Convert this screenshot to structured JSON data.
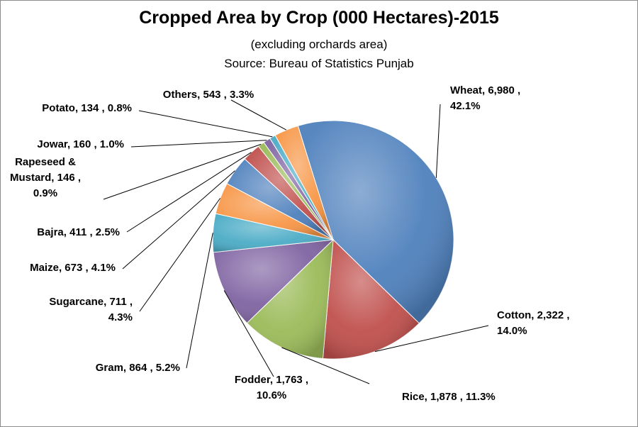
{
  "chart_data": {
    "type": "pie",
    "title": "Cropped Area by Crop (000 Hectares)-2015",
    "subtitle": [
      "(excluding orchards area)",
      "Source: Bureau of Statistics Punjab"
    ],
    "slices": [
      {
        "name": "Wheat",
        "value": 6980,
        "value_text": "6,980",
        "percent": "42.1%",
        "color": "#4f81bd",
        "label": [
          "Wheat,  6,980 ,",
          "42.1%"
        ]
      },
      {
        "name": "Cotton",
        "value": 2322,
        "value_text": "2,322",
        "percent": "14.0%",
        "color": "#c0504d",
        "label": [
          "Cotton,  2,322 ,",
          "14.0%"
        ]
      },
      {
        "name": "Rice",
        "value": 1878,
        "value_text": "1,878",
        "percent": "11.3%",
        "color": "#9bbb59",
        "label": [
          "Rice,  1,878 , 11.3%"
        ]
      },
      {
        "name": "Fodder",
        "value": 1763,
        "value_text": "1,763",
        "percent": "10.6%",
        "color": "#8064a2",
        "label": [
          "Fodder,  1,763 ,",
          "10.6%"
        ]
      },
      {
        "name": "Gram",
        "value": 864,
        "value_text": "864",
        "percent": "5.2%",
        "color": "#4bacc6",
        "label": [
          "Gram,  864 , 5.2%"
        ]
      },
      {
        "name": "Sugarcane",
        "value": 711,
        "value_text": "711",
        "percent": "4.3%",
        "color": "#f79646",
        "label": [
          "Sugarcane,  711 ,",
          "4.3%"
        ]
      },
      {
        "name": "Maize",
        "value": 673,
        "value_text": "673",
        "percent": "4.1%",
        "color": "#4f81bd",
        "label": [
          "Maize,  673 , 4.1%"
        ]
      },
      {
        "name": "Bajra",
        "value": 411,
        "value_text": "411",
        "percent": "2.5%",
        "color": "#c0504d",
        "label": [
          "Bajra,  411 , 2.5%"
        ]
      },
      {
        "name": "Rapeseed & Mustard",
        "value": 146,
        "value_text": "146",
        "percent": "0.9%",
        "color": "#9bbb59",
        "label": [
          "Rapeseed &",
          "Mustard,  146 ,",
          "0.9%"
        ]
      },
      {
        "name": "Jowar",
        "value": 160,
        "value_text": "160",
        "percent": "1.0%",
        "color": "#8064a2",
        "label": [
          "Jowar,  160 , 1.0%"
        ]
      },
      {
        "name": "Potato",
        "value": 134,
        "value_text": "134",
        "percent": "0.8%",
        "color": "#4bacc6",
        "label": [
          "Potato,  134 , 0.8%"
        ]
      },
      {
        "name": "Others",
        "value": 543,
        "value_text": "543",
        "percent": "3.3%",
        "color": "#f79646",
        "label": [
          "Others,  543 , 3.3%"
        ]
      }
    ],
    "start_angle_deg": 343,
    "direction": "clockwise",
    "legend": "none",
    "data_labels": "outside with leader lines"
  }
}
